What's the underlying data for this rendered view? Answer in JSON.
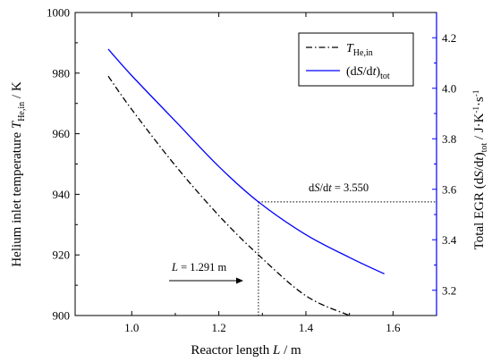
{
  "chart_data": {
    "type": "line",
    "x_axis": {
      "label": "Reactor length L / m",
      "range": [
        0.87,
        1.7
      ],
      "ticks": [
        1.0,
        1.2,
        1.4,
        1.6
      ],
      "tick_labels": [
        "1.0",
        "1.2",
        "1.4",
        "1.6"
      ]
    },
    "y_axis_left": {
      "label": "Helium inlet temperature T_He,in / K",
      "range": [
        900,
        1000
      ],
      "ticks": [
        900,
        920,
        940,
        960,
        980,
        1000
      ],
      "tick_labels": [
        "900",
        "920",
        "940",
        "960",
        "980",
        "1000"
      ]
    },
    "y_axis_right": {
      "label": "Total EGR (dS/dt)_tot / J·K⁻¹·s⁻¹",
      "range": [
        3.1,
        4.3
      ],
      "ticks": [
        3.2,
        3.4,
        3.6,
        3.8,
        4.0,
        4.2
      ],
      "tick_labels": [
        "3.2",
        "3.4",
        "3.6",
        "3.8",
        "4.0",
        "4.2"
      ],
      "color": "#0000ff"
    },
    "series": [
      {
        "name": "T_He,in",
        "axis": "left",
        "style": "dash-dot",
        "color": "#000000",
        "x": [
          0.946,
          1.0,
          1.1,
          1.2,
          1.291,
          1.4,
          1.5
        ],
        "y": [
          979.0,
          968.0,
          949.5,
          933.0,
          920.0,
          906.5,
          900.0
        ]
      },
      {
        "name": "(dS/dt)_tot",
        "axis": "right",
        "style": "solid",
        "color": "#0000ff",
        "x": [
          0.946,
          1.0,
          1.1,
          1.2,
          1.291,
          1.4,
          1.5,
          1.58
        ],
        "y": [
          4.155,
          4.05,
          3.87,
          3.69,
          3.55,
          3.42,
          3.33,
          3.265
        ]
      }
    ],
    "annotations": {
      "ds_label": "dS/dt = 3.550",
      "ds_value": 3.55,
      "l_label": "L = 1.291 m",
      "l_value": 1.291,
      "t_value": 920.0
    },
    "legend": {
      "placement": "top-right",
      "items": [
        "T_He,in",
        "(dS/dt)_tot"
      ]
    }
  }
}
